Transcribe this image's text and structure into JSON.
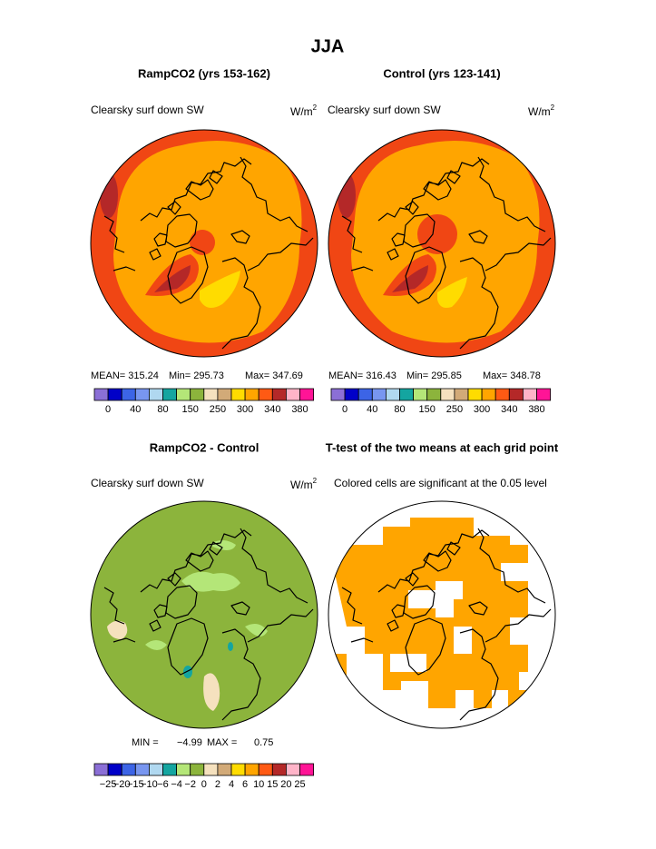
{
  "title": "JJA",
  "panels": [
    {
      "title": "RampCO2 (yrs 153-162)",
      "variable": "Clearsky surf down SW",
      "units": "W/m",
      "units_sup": "2",
      "stats": [
        "MEAN= 315.24",
        "Min= 295.73",
        "Max= 347.69"
      ],
      "colorbar_labels": [
        "0",
        "40",
        "80",
        "150",
        "250",
        "300",
        "340",
        "380"
      ]
    },
    {
      "title": "Control (yrs 123-141)",
      "variable": "Clearsky surf down SW",
      "units": "W/m",
      "units_sup": "2",
      "stats": [
        "MEAN= 316.43",
        "Min= 295.85",
        "Max= 348.78"
      ],
      "colorbar_labels": [
        "0",
        "40",
        "80",
        "150",
        "250",
        "300",
        "340",
        "380"
      ]
    },
    {
      "title": "RampCO2 - Control",
      "variable": "Clearsky surf down SW",
      "units": "W/m",
      "units_sup": "2",
      "stats": [
        "MIN =",
        "−4.99",
        "MAX =",
        "0.75"
      ],
      "colorbar_labels": [
        "−25",
        "−20",
        "−15",
        "−10",
        "−6",
        "−4",
        "−2",
        "0",
        "2",
        "4",
        "6",
        "10",
        "15",
        "20",
        "25"
      ]
    },
    {
      "title": "T-test of the two means at each grid point",
      "note": "Colored cells are significant at the 0.05 level"
    }
  ],
  "colorbar_colors": [
    "#8b6fd6",
    "#0000c8",
    "#3c64e6",
    "#7896f0",
    "#b0d8f0",
    "#14a5a0",
    "#b4e678",
    "#8cb43c",
    "#f5e1be",
    "#d2aa78",
    "#ffdc00",
    "#ffa500",
    "#ff5a14",
    "#b42828",
    "#ffb4c8",
    "#ff1496"
  ]
}
